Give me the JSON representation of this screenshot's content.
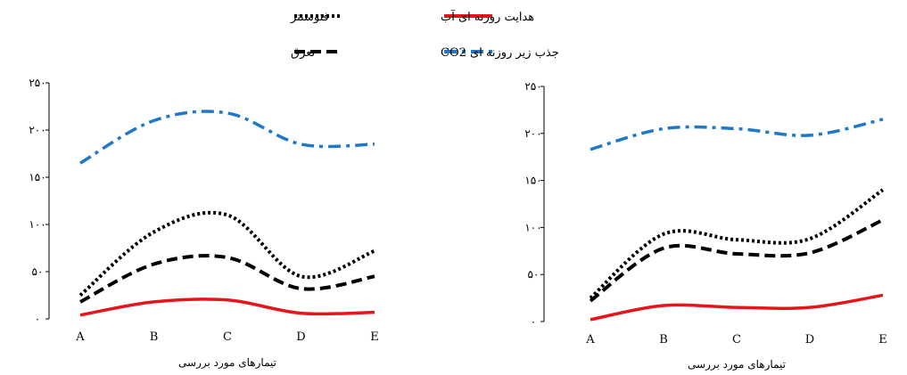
{
  "legend": {
    "photosynthesis": "فتوسنتز",
    "conductance": "هدایت روزنه ای آب",
    "transpiration": "تعرق",
    "co2": "جذب زیر روزنه ای CO2"
  },
  "colors": {
    "photosynthesis": "#000000",
    "transpiration": "#000000",
    "conductance": "#e8141c",
    "co2": "#1f78c8"
  },
  "chart_data": [
    {
      "type": "line",
      "title": "",
      "xlabel": "تیمارهای مورد بررسی",
      "ylabel": "",
      "ylim": [
        0,
        250
      ],
      "yticks": [
        "۰",
        "۵۰",
        "۱۰۰",
        "۱۵۰",
        "۲۰۰",
        "۲۵۰"
      ],
      "categories": [
        "A",
        "B",
        "C",
        "D",
        "E"
      ],
      "series": [
        {
          "key": "co2",
          "values": [
            165,
            210,
            218,
            185,
            185
          ]
        },
        {
          "key": "photosynthesis",
          "values": [
            25,
            92,
            110,
            45,
            72
          ]
        },
        {
          "key": "transpiration",
          "values": [
            18,
            58,
            65,
            32,
            45
          ]
        },
        {
          "key": "conductance",
          "values": [
            4,
            18,
            20,
            6,
            7
          ]
        }
      ]
    },
    {
      "type": "line",
      "title": "",
      "xlabel": "تیمارهای مورد بررسی",
      "ylabel": "",
      "ylim": [
        0,
        250
      ],
      "yticks": [
        "۰",
        "۵۰",
        "۱۰۰",
        "۱۵۰",
        "۲۰۰",
        "۲۵۰"
      ],
      "categories": [
        "A",
        "B",
        "C",
        "D",
        "E"
      ],
      "series": [
        {
          "key": "co2",
          "values": [
            183,
            205,
            205,
            198,
            215
          ]
        },
        {
          "key": "photosynthesis",
          "values": [
            25,
            93,
            87,
            88,
            140
          ]
        },
        {
          "key": "transpiration",
          "values": [
            22,
            78,
            72,
            73,
            108
          ]
        },
        {
          "key": "conductance",
          "values": [
            2,
            17,
            15,
            15,
            28
          ]
        }
      ]
    }
  ]
}
